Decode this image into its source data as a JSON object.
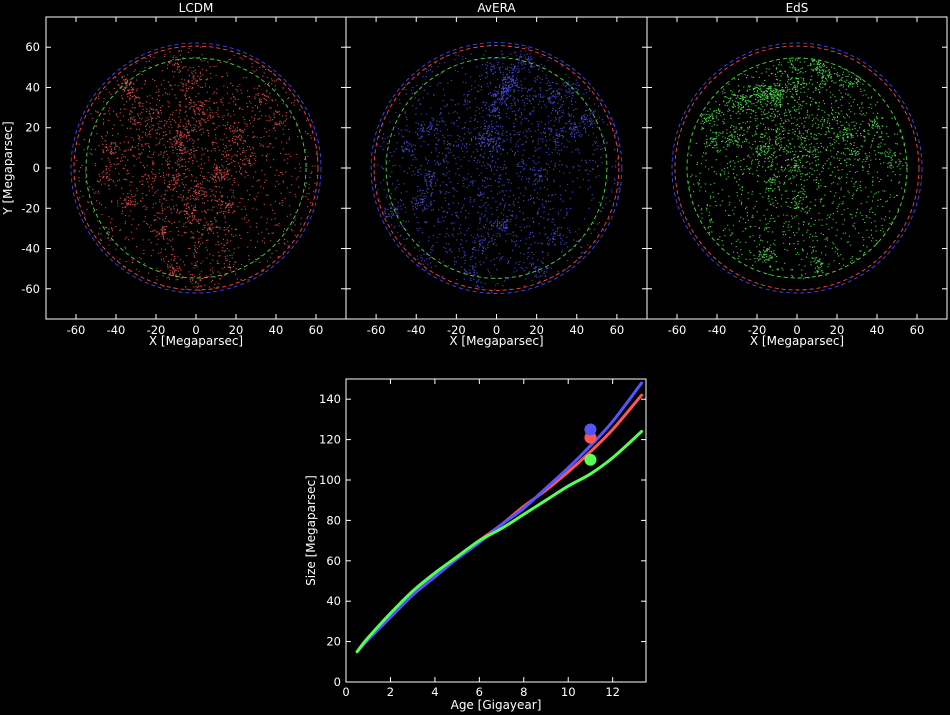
{
  "chart_data": [
    {
      "type": "scatter",
      "title": "LCDM",
      "xlabel": "X [Megaparsec]",
      "ylabel": "Y [Megaparsec]",
      "xlim": [
        -75,
        75
      ],
      "ylim": [
        -75,
        75
      ],
      "xticks": [
        -60,
        -40,
        -20,
        0,
        20,
        40,
        60
      ],
      "yticks": [
        -60,
        -40,
        -20,
        0,
        20,
        40,
        60
      ],
      "point_color": "#ff5555",
      "distribution_radius": 61,
      "reference_circles": [
        {
          "color": "#4444ff",
          "radius": 62.5
        },
        {
          "color": "#ff4444",
          "radius": 61
        },
        {
          "color": "#44dd44",
          "radius": 55
        }
      ]
    },
    {
      "type": "scatter",
      "title": "AvERA",
      "xlabel": "X [Megaparsec]",
      "ylabel": "",
      "xlim": [
        -75,
        75
      ],
      "ylim": [
        -75,
        75
      ],
      "xticks": [
        -60,
        -40,
        -20,
        0,
        20,
        40,
        60
      ],
      "yticks": [
        -60,
        -40,
        -20,
        0,
        20,
        40,
        60
      ],
      "point_color": "#5555ff",
      "distribution_radius": 62,
      "reference_circles": [
        {
          "color": "#4444ff",
          "radius": 62.5
        },
        {
          "color": "#ff4444",
          "radius": 61
        },
        {
          "color": "#44dd44",
          "radius": 55
        }
      ]
    },
    {
      "type": "scatter",
      "title": "EdS",
      "xlabel": "X [Megaparsec]",
      "ylabel": "",
      "xlim": [
        -75,
        75
      ],
      "ylim": [
        -75,
        75
      ],
      "xticks": [
        -60,
        -40,
        -20,
        0,
        20,
        40,
        60
      ],
      "yticks": [
        -60,
        -40,
        -20,
        0,
        20,
        40,
        60
      ],
      "point_color": "#55ff55",
      "distribution_radius": 55,
      "reference_circles": [
        {
          "color": "#4444ff",
          "radius": 62.5
        },
        {
          "color": "#ff4444",
          "radius": 61
        },
        {
          "color": "#44dd44",
          "radius": 55
        }
      ]
    },
    {
      "type": "line",
      "title": "",
      "xlabel": "Age [Gigayear]",
      "ylabel": "Size [Megaparsec]",
      "xlim": [
        0,
        13.5
      ],
      "ylim": [
        0,
        150
      ],
      "xticks": [
        0,
        2,
        4,
        6,
        8,
        10,
        12
      ],
      "yticks": [
        0,
        20,
        40,
        60,
        80,
        100,
        120,
        140
      ],
      "series": [
        {
          "color": "#ff5555",
          "x": [
            0.5,
            1,
            2,
            3,
            4,
            5,
            6,
            7,
            8,
            9,
            10,
            11,
            12,
            13.3
          ],
          "y": [
            15,
            22,
            33,
            44,
            53,
            62,
            70,
            78,
            87,
            95,
            104,
            114,
            125,
            142
          ],
          "marker": {
            "x": 11.0,
            "y": 121
          }
        },
        {
          "color": "#5555ff",
          "x": [
            0.5,
            1,
            2,
            3,
            4,
            5,
            6,
            7,
            8,
            9,
            10,
            11,
            12,
            13.3
          ],
          "y": [
            15,
            21,
            32,
            43,
            52,
            61,
            69,
            78,
            86,
            96,
            106,
            117,
            129,
            148
          ],
          "marker": {
            "x": 11.0,
            "y": 125
          }
        },
        {
          "color": "#55ff55",
          "x": [
            0.5,
            1,
            2,
            3,
            4,
            5,
            6,
            7,
            8,
            9,
            10,
            11,
            12,
            13.3
          ],
          "y": [
            15,
            22,
            34,
            45,
            54,
            62,
            70,
            76,
            83,
            90,
            97,
            103,
            111,
            124
          ],
          "marker": {
            "x": 11.0,
            "y": 110
          }
        }
      ]
    }
  ]
}
